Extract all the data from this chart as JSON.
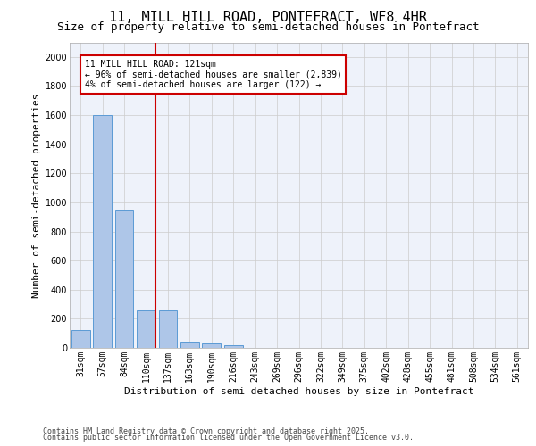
{
  "title1": "11, MILL HILL ROAD, PONTEFRACT, WF8 4HR",
  "title2": "Size of property relative to semi-detached houses in Pontefract",
  "xlabel": "Distribution of semi-detached houses by size in Pontefract",
  "ylabel": "Number of semi-detached properties",
  "categories": [
    "31sqm",
    "57sqm",
    "84sqm",
    "110sqm",
    "137sqm",
    "163sqm",
    "190sqm",
    "216sqm",
    "243sqm",
    "269sqm",
    "296sqm",
    "322sqm",
    "349sqm",
    "375sqm",
    "402sqm",
    "428sqm",
    "455sqm",
    "481sqm",
    "508sqm",
    "534sqm",
    "561sqm"
  ],
  "values": [
    120,
    1600,
    950,
    260,
    255,
    40,
    33,
    18,
    0,
    0,
    0,
    0,
    0,
    0,
    0,
    0,
    0,
    0,
    0,
    0,
    0
  ],
  "bar_color": "#aec6e8",
  "bar_edge_color": "#5b9bd5",
  "vline_x_index": 3,
  "vline_color": "#cc0000",
  "annotation_text": "11 MILL HILL ROAD: 121sqm\n← 96% of semi-detached houses are smaller (2,839)\n4% of semi-detached houses are larger (122) →",
  "annotation_box_color": "#ffffff",
  "annotation_box_edge_color": "#cc0000",
  "ylim": [
    0,
    2100
  ],
  "yticks": [
    0,
    200,
    400,
    600,
    800,
    1000,
    1200,
    1400,
    1600,
    1800,
    2000
  ],
  "grid_color": "#cccccc",
  "background_color": "#eef2fa",
  "footer_line1": "Contains HM Land Registry data © Crown copyright and database right 2025.",
  "footer_line2": "Contains public sector information licensed under the Open Government Licence v3.0.",
  "title_fontsize": 11,
  "subtitle_fontsize": 9,
  "axis_label_fontsize": 8,
  "tick_fontsize": 7,
  "annotation_fontsize": 7,
  "footer_fontsize": 6
}
